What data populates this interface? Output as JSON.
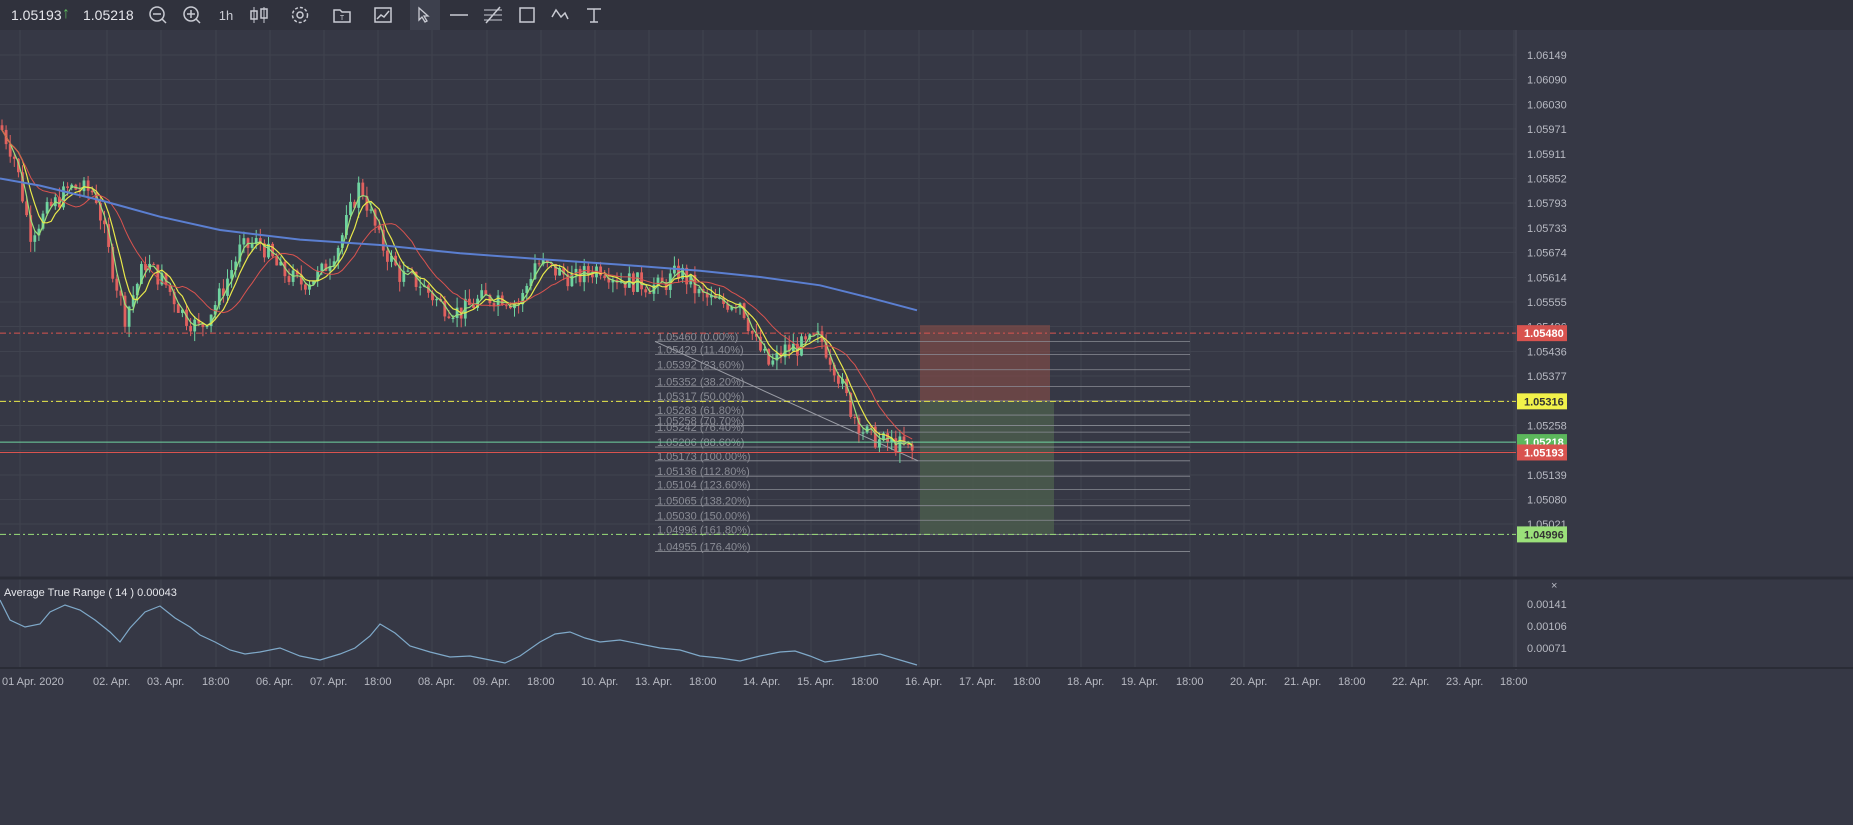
{
  "toolbar": {
    "bid": "1.05193",
    "ask": "1.05218",
    "timeframe": "1h",
    "tools": [
      "zoom-out",
      "zoom-in",
      "timeframe",
      "candles",
      "settings",
      "templates",
      "indicators",
      "cursor",
      "horizontal-line",
      "fibonacci",
      "rectangle",
      "path",
      "text"
    ]
  },
  "chart_data": {
    "type": "candlestick",
    "symbol_price": {
      "bid": 1.05193,
      "ask": 1.05218
    },
    "y_axis": {
      "ylim": [
        1.0495,
        1.0618
      ],
      "ticks": [
        "1.06149",
        "1.06090",
        "1.06030",
        "1.05971",
        "1.05911",
        "1.05852",
        "1.05793",
        "1.05733",
        "1.05674",
        "1.05614",
        "1.05555",
        "1.05496",
        "1.05436",
        "1.05377",
        "1.05317",
        "1.05258",
        "1.05198",
        "1.05139",
        "1.05080",
        "1.05021"
      ]
    },
    "x_axis": {
      "ticks": [
        "01 Apr. 2020",
        "02. Apr.",
        "03. Apr.",
        "18:00",
        "06. Apr.",
        "07. Apr.",
        "18:00",
        "08. Apr.",
        "09. Apr.",
        "18:00",
        "10. Apr.",
        "13. Apr.",
        "18:00",
        "14. Apr.",
        "15. Apr.",
        "18:00",
        "16. Apr.",
        "17. Apr.",
        "18:00",
        "18. Apr.",
        "19. Apr.",
        "18:00",
        "20. Apr.",
        "21. Apr.",
        "18:00",
        "22. Apr.",
        "23. Apr.",
        "18:00"
      ]
    },
    "price_tags": [
      {
        "value": "1.05480",
        "color": "#d9534f",
        "text_color": "#ffffff"
      },
      {
        "value": "1.05316",
        "color": "#f2f24a",
        "text_color": "#333333"
      },
      {
        "value": "1.05218",
        "color": "#5cb85c",
        "text_color": "#ffffff"
      },
      {
        "value": "1.05193",
        "color": "#d9534f",
        "text_color": "#ffffff"
      },
      {
        "value": "1.04996",
        "color": "#9be07a",
        "text_color": "#333333"
      }
    ],
    "fibonacci": [
      {
        "price": "1.05460",
        "pct": "0.00%"
      },
      {
        "price": "1.05429",
        "pct": "11.40%"
      },
      {
        "price": "1.05392",
        "pct": "23.60%"
      },
      {
        "price": "1.05352",
        "pct": "38.20%"
      },
      {
        "price": "1.05317",
        "pct": "50.00%"
      },
      {
        "price": "1.05283",
        "pct": "61.80%"
      },
      {
        "price": "1.05258",
        "pct": "70.70%"
      },
      {
        "price": "1.05242",
        "pct": "76.40%"
      },
      {
        "price": "1.05206",
        "pct": "88.60%"
      },
      {
        "price": "1.05173",
        "pct": "100.00%"
      },
      {
        "price": "1.05136",
        "pct": "112.80%"
      },
      {
        "price": "1.05104",
        "pct": "123.60%"
      },
      {
        "price": "1.05065",
        "pct": "138.20%"
      },
      {
        "price": "1.05030",
        "pct": "150.00%"
      },
      {
        "price": "1.04996",
        "pct": "161.80%"
      },
      {
        "price": "1.04955",
        "pct": "176.40%"
      }
    ],
    "indicator": {
      "title": "Average True Range ( 14 ) 0.00043",
      "ticks": [
        "0.00141",
        "0.00106",
        "0.00071"
      ]
    },
    "colors": {
      "background": "#363845",
      "grid": "#40434f",
      "bull": "#6fd3a0",
      "bear": "#e0615f",
      "ma_long": "#5b7fd1",
      "ma_mid": "#d9534f",
      "ma_fast": "#e8e84a",
      "ma_fastest": "#9be07a",
      "atr": "#7fa9c9",
      "risk_zone": "#7a4a47",
      "reward_zone": "#4a5c4c"
    }
  }
}
